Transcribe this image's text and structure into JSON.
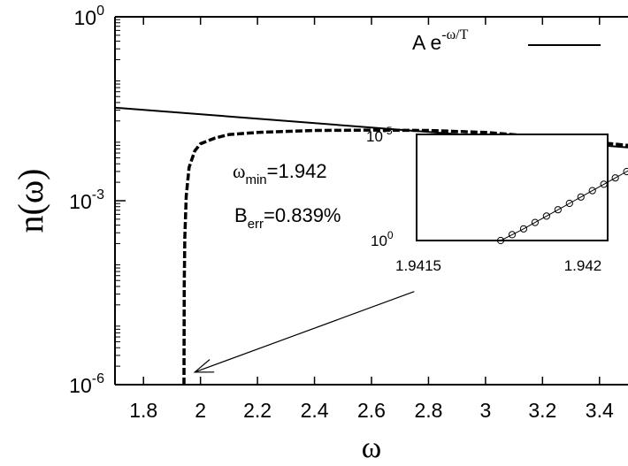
{
  "chart_data": {
    "type": "line",
    "title": "",
    "xlabel": "ω",
    "ylabel": "n(ω)",
    "xlim": [
      1.7,
      3.5
    ],
    "ylim": [
      1e-06,
      1
    ],
    "yscale": "log",
    "xticks": [
      1.8,
      2.0,
      2.2,
      2.4,
      2.6,
      2.8,
      3.0,
      3.2,
      3.4
    ],
    "xtick_labels": [
      "1.8",
      "2",
      "2.2",
      "2.4",
      "2.6",
      "2.8",
      "3",
      "3.2",
      "3.4"
    ],
    "yticks": [
      {
        "value": 1,
        "base": "10",
        "exp": "0"
      },
      {
        "value": 0.001,
        "base": "10",
        "exp": "-3"
      },
      {
        "value": 1e-06,
        "base": "10",
        "exp": "-6"
      }
    ],
    "legend": {
      "position": "top-right",
      "label_prefix": "A e",
      "label_exponent": "-ω/T"
    },
    "series": [
      {
        "name": "A e^{-ω/T}",
        "style": "solid",
        "color": "#000000",
        "x": [
          1.7,
          3.5
        ],
        "y": [
          0.033,
          0.0074
        ]
      },
      {
        "style": "dashed",
        "color": "#000000",
        "x": [
          1.942,
          1.943,
          1.945,
          1.95,
          1.96,
          1.98,
          2.0,
          2.05,
          2.1,
          2.2,
          2.4,
          2.6,
          2.8,
          3.0,
          3.2,
          3.5
        ],
        "y": [
          1e-06,
          4e-05,
          0.00025,
          0.0012,
          0.0035,
          0.0065,
          0.0085,
          0.0105,
          0.012,
          0.013,
          0.014,
          0.0142,
          0.014,
          0.013,
          0.011,
          0.008
        ]
      }
    ],
    "annotations": {
      "omega_min": {
        "symbol": "ω",
        "sub": "min",
        "value": "=1.942"
      },
      "b_err": {
        "symbol": "B",
        "sub": "err",
        "value": "=0.839%"
      },
      "arrow": {
        "from": [
          2.75,
          3.3e-05
        ],
        "to": [
          1.98,
          1.6e-06
        ]
      }
    },
    "inset": {
      "xlim": [
        1.9415,
        1.942
      ],
      "xtick_labels": [
        "1.9415",
        "1.942"
      ],
      "ytick_labels": [
        {
          "base": "10",
          "exp": "-5"
        },
        {
          "base": "10",
          "exp": "0"
        }
      ],
      "markers": "open-circle",
      "points_x": [
        1.94172,
        1.94175,
        1.94178,
        1.94181,
        1.94184,
        1.94187,
        1.9419,
        1.94193,
        1.94196,
        1.94199,
        1.94202,
        1.94205,
        1.94208,
        1.94211,
        1.94214,
        1.94217,
        1.94219
      ],
      "points_y_fraction": [
        0.0,
        0.055,
        0.11,
        0.17,
        0.23,
        0.29,
        0.35,
        0.41,
        0.47,
        0.53,
        0.59,
        0.65,
        0.71,
        0.77,
        0.83,
        0.89,
        0.95
      ]
    }
  }
}
